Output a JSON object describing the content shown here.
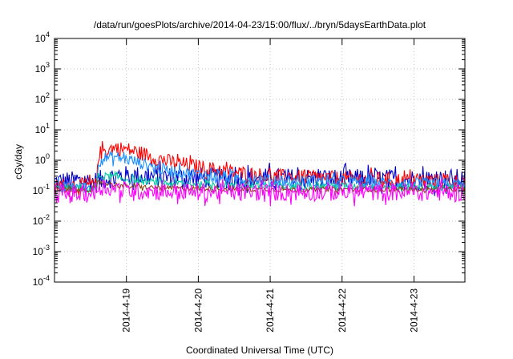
{
  "chart_data": {
    "type": "line",
    "title": "/data/run/goesPlots/archive/2014-04-23/15:00/flux/../bryn/5daysEarthData.plot",
    "xlabel": "Coordinated Universal Time (UTC)",
    "ylabel": "cGy/day",
    "yscale": "log",
    "ylim": [
      0.0001,
      10000
    ],
    "xlim": [
      "2014-04-18 00:00",
      "2014-04-23 17:00"
    ],
    "grid": true,
    "legend": "none",
    "x_ticks": [
      {
        "date": "2014-04-19 00:00",
        "label": "2014-4-19"
      },
      {
        "date": "2014-04-20 00:00",
        "label": "2014-4-20"
      },
      {
        "date": "2014-04-21 00:00",
        "label": "2014-4-21"
      },
      {
        "date": "2014-04-22 00:00",
        "label": "2014-4-22"
      },
      {
        "date": "2014-04-23 00:00",
        "label": "2014-4-23"
      }
    ],
    "y_ticks": [
      {
        "value": 0.0001,
        "base": "10",
        "exp": "-4"
      },
      {
        "value": 0.001,
        "base": "10",
        "exp": "-3"
      },
      {
        "value": 0.01,
        "base": "10",
        "exp": "-2"
      },
      {
        "value": 0.1,
        "base": "10",
        "exp": "-1"
      },
      {
        "value": 1,
        "base": "10",
        "exp": "0"
      },
      {
        "value": 10,
        "base": "10",
        "exp": "1"
      },
      {
        "value": 100,
        "base": "10",
        "exp": "2"
      },
      {
        "value": 1000,
        "base": "10",
        "exp": "3"
      },
      {
        "value": 10000,
        "base": "10",
        "exp": "4"
      }
    ],
    "series": [
      {
        "color": "#0000cc",
        "noise": 0.35,
        "x": [
          "2014-04-18 00:00",
          "2014-04-18 12:00",
          "2014-04-18 14:00",
          "2014-04-18 14:30",
          "2014-04-18 17:00",
          "2014-04-18 20:00",
          "2014-04-19 00:00",
          "2014-04-19 06:00",
          "2014-04-19 12:00",
          "2014-04-20 00:00",
          "2014-04-20 12:00",
          "2014-04-21 00:00",
          "2014-04-22 00:00",
          "2014-04-23 00:00",
          "2014-04-23 17:00"
        ],
        "y": [
          0.2,
          0.2,
          0.2,
          0.2,
          0.25,
          0.28,
          0.3,
          0.3,
          0.28,
          0.27,
          0.25,
          0.25,
          0.24,
          0.23,
          0.24
        ]
      },
      {
        "color": "#ff0000",
        "noise": 0.25,
        "x": [
          "2014-04-18 00:00",
          "2014-04-18 12:00",
          "2014-04-18 14:00",
          "2014-04-18 14:30",
          "2014-04-18 17:00",
          "2014-04-18 20:00",
          "2014-04-19 00:00",
          "2014-04-19 06:00",
          "2014-04-19 12:00",
          "2014-04-20 00:00",
          "2014-04-20 12:00",
          "2014-04-21 00:00",
          "2014-04-22 00:00",
          "2014-04-23 00:00",
          "2014-04-23 17:00"
        ],
        "y": [
          0.15,
          0.15,
          0.15,
          1.5,
          2.2,
          2.5,
          2.3,
          1.6,
          1.0,
          0.6,
          0.4,
          0.3,
          0.25,
          0.22,
          0.2
        ]
      },
      {
        "color": "#1e90ff",
        "noise": 0.2,
        "x": [
          "2014-04-18 00:00",
          "2014-04-18 12:00",
          "2014-04-18 14:00",
          "2014-04-18 14:30",
          "2014-04-18 17:00",
          "2014-04-18 20:00",
          "2014-04-19 00:00",
          "2014-04-19 06:00",
          "2014-04-19 12:00",
          "2014-04-20 00:00",
          "2014-04-20 12:00",
          "2014-04-21 00:00",
          "2014-04-22 00:00",
          "2014-04-23 00:00",
          "2014-04-23 17:00"
        ],
        "y": [
          0.13,
          0.13,
          0.13,
          0.9,
          1.2,
          1.3,
          1.1,
          0.75,
          0.5,
          0.35,
          0.27,
          0.22,
          0.19,
          0.17,
          0.16
        ]
      },
      {
        "color": "#00c8a0",
        "noise": 0.12,
        "x": [
          "2014-04-18 00:00",
          "2014-04-18 12:00",
          "2014-04-18 14:00",
          "2014-04-18 14:30",
          "2014-04-18 17:00",
          "2014-04-18 20:00",
          "2014-04-19 00:00",
          "2014-04-19 06:00",
          "2014-04-19 12:00",
          "2014-04-20 00:00",
          "2014-04-20 12:00",
          "2014-04-21 00:00",
          "2014-04-22 00:00",
          "2014-04-23 00:00",
          "2014-04-23 17:00"
        ],
        "y": [
          0.12,
          0.12,
          0.12,
          0.3,
          0.3,
          0.28,
          0.24,
          0.2,
          0.18,
          0.16,
          0.15,
          0.14,
          0.14,
          0.13,
          0.13
        ]
      },
      {
        "color": "#8b4513",
        "noise": 0.08,
        "x": [
          "2014-04-18 00:00",
          "2014-04-18 12:00",
          "2014-04-18 14:00",
          "2014-04-18 14:30",
          "2014-04-18 17:00",
          "2014-04-18 20:00",
          "2014-04-19 00:00",
          "2014-04-19 06:00",
          "2014-04-19 12:00",
          "2014-04-20 00:00",
          "2014-04-20 12:00",
          "2014-04-21 00:00",
          "2014-04-22 00:00",
          "2014-04-23 00:00",
          "2014-04-23 17:00"
        ],
        "y": [
          0.11,
          0.11,
          0.11,
          0.2,
          0.18,
          0.16,
          0.14,
          0.13,
          0.12,
          0.12,
          0.11,
          0.11,
          0.11,
          0.11,
          0.11
        ]
      },
      {
        "color": "#ff00ff",
        "noise": 0.3,
        "x": [
          "2014-04-18 00:00",
          "2014-04-18 12:00",
          "2014-04-18 14:00",
          "2014-04-18 14:30",
          "2014-04-18 17:00",
          "2014-04-18 20:00",
          "2014-04-19 00:00",
          "2014-04-19 06:00",
          "2014-04-19 12:00",
          "2014-04-20 00:00",
          "2014-04-20 12:00",
          "2014-04-21 00:00",
          "2014-04-22 00:00",
          "2014-04-23 00:00",
          "2014-04-23 17:00"
        ],
        "y": [
          0.08,
          0.08,
          0.08,
          0.15,
          0.13,
          0.12,
          0.1,
          0.1,
          0.095,
          0.09,
          0.09,
          0.09,
          0.09,
          0.09,
          0.09
        ]
      }
    ]
  }
}
